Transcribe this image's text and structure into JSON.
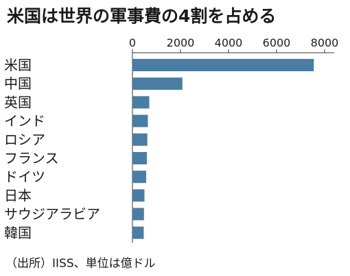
{
  "chart_data": {
    "type": "bar",
    "orientation": "horizontal",
    "title": "米国は世界の軍事費の4割を占める",
    "categories": [
      "米国",
      "中国",
      "英国",
      "インド",
      "ロシア",
      "フランス",
      "ドイツ",
      "日本",
      "サウジアラビア",
      "韓国"
    ],
    "values": [
      7550,
      2080,
      700,
      640,
      620,
      600,
      570,
      500,
      480,
      470
    ],
    "xlabel": "",
    "ylabel": "",
    "xlim": [
      0,
      8400
    ],
    "xticks": [
      0,
      2000,
      4000,
      6000,
      8000
    ],
    "x_axis_position": "top",
    "grid": false,
    "bar_color": "#4a7da3",
    "note": "（出所）IISS、単位は億ドル"
  }
}
